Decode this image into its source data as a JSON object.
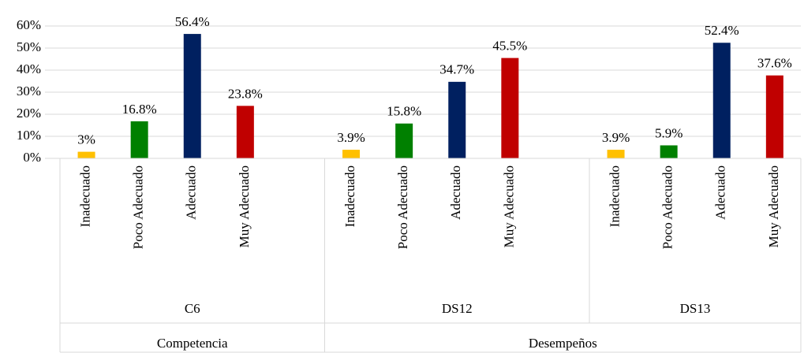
{
  "chart_data": {
    "type": "bar",
    "ylim": [
      0,
      60
    ],
    "yticks": [
      {
        "value": 0,
        "label": "0%"
      },
      {
        "value": 10,
        "label": "10%"
      },
      {
        "value": 20,
        "label": "20%"
      },
      {
        "value": 30,
        "label": "30%"
      },
      {
        "value": 40,
        "label": "40%"
      },
      {
        "value": 50,
        "label": "50%"
      },
      {
        "value": 60,
        "label": "60%"
      }
    ],
    "grid": true,
    "colors": [
      "#ffc000",
      "#008000",
      "#002060",
      "#c00000"
    ],
    "groups": [
      {
        "label": "Competencia",
        "subgroups": [
          {
            "label": "C6",
            "categories": [
              "Inadecuado",
              "Poco Adecuado",
              "Adecuado",
              "Muy Adecuado"
            ],
            "values": [
              3,
              16.8,
              56.4,
              23.8
            ],
            "value_labels": [
              "3%",
              "16.8%",
              "56.4%",
              "23.8%"
            ]
          }
        ]
      },
      {
        "label": "Desempeños",
        "subgroups": [
          {
            "label": "DS12",
            "categories": [
              "Inadecuado",
              "Poco Adecuado",
              "Adecuado",
              "Muy Adecuado"
            ],
            "values": [
              3.9,
              15.8,
              34.7,
              45.5
            ],
            "value_labels": [
              "3.9%",
              "15.8%",
              "34.7%",
              "45.5%"
            ]
          },
          {
            "label": "DS13",
            "categories": [
              "Inadecuado",
              "Poco Adecuado",
              "Adecuado",
              "Muy Adecuado"
            ],
            "values": [
              3.9,
              5.9,
              52.4,
              37.6
            ],
            "value_labels": [
              "3.9%",
              "5.9%",
              "52.4%",
              "37.6%"
            ]
          }
        ]
      }
    ]
  }
}
